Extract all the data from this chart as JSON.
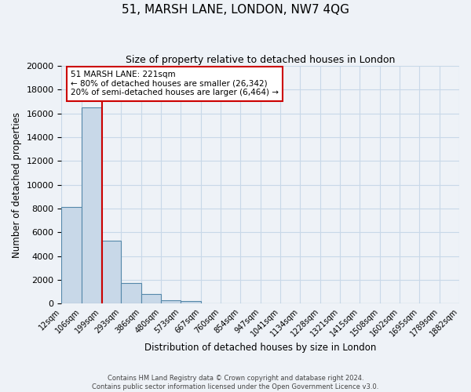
{
  "title": "51, MARSH LANE, LONDON, NW7 4QG",
  "subtitle": "Size of property relative to detached houses in London",
  "xlabel": "Distribution of detached houses by size in London",
  "ylabel": "Number of detached properties",
  "bin_labels": [
    "12sqm",
    "106sqm",
    "199sqm",
    "293sqm",
    "386sqm",
    "480sqm",
    "573sqm",
    "667sqm",
    "760sqm",
    "854sqm",
    "947sqm",
    "1041sqm",
    "1134sqm",
    "1228sqm",
    "1321sqm",
    "1415sqm",
    "1508sqm",
    "1602sqm",
    "1695sqm",
    "1789sqm",
    "1882sqm"
  ],
  "bar_values": [
    8150,
    16500,
    5300,
    1750,
    800,
    300,
    250,
    0,
    0,
    0,
    0,
    0,
    0,
    0,
    0,
    0,
    0,
    0,
    0,
    0
  ],
  "bar_color": "#c8d8e8",
  "bar_edge_color": "#5588aa",
  "property_line_x": 2.05,
  "property_label": "51 MARSH LANE: 221sqm",
  "annotation_smaller": "← 80% of detached houses are smaller (26,342)",
  "annotation_larger": "20% of semi-detached houses are larger (6,464) →",
  "annotation_box_color": "#ffffff",
  "annotation_box_edge": "#cc0000",
  "line_color": "#cc0000",
  "ylim": [
    0,
    20000
  ],
  "yticks": [
    0,
    2000,
    4000,
    6000,
    8000,
    10000,
    12000,
    14000,
    16000,
    18000,
    20000
  ],
  "grid_color": "#c8d8e8",
  "footer1": "Contains HM Land Registry data © Crown copyright and database right 2024.",
  "footer2": "Contains public sector information licensed under the Open Government Licence v3.0."
}
